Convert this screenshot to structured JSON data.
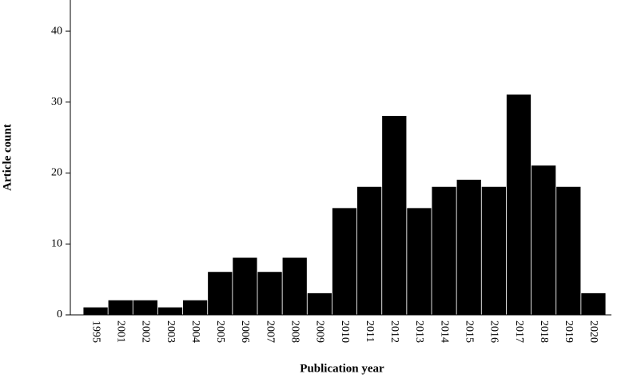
{
  "chart_data": {
    "type": "bar",
    "x_label": "Publication year",
    "y_label": "Article count",
    "categories": [
      "1995",
      "2001",
      "2002",
      "2003",
      "2004",
      "2005",
      "2006",
      "2007",
      "2008",
      "2009",
      "2010",
      "2011",
      "2012",
      "2013",
      "2014",
      "2015",
      "2016",
      "2017",
      "2018",
      "2019",
      "2020"
    ],
    "values": [
      1,
      2,
      2,
      1,
      2,
      6,
      8,
      6,
      8,
      3,
      15,
      18,
      28,
      15,
      18,
      19,
      18,
      31,
      21,
      18,
      3
    ],
    "color": "#000000",
    "ylim": [
      0,
      44.4
    ],
    "yticks": [
      0,
      10,
      20,
      30,
      40
    ]
  }
}
